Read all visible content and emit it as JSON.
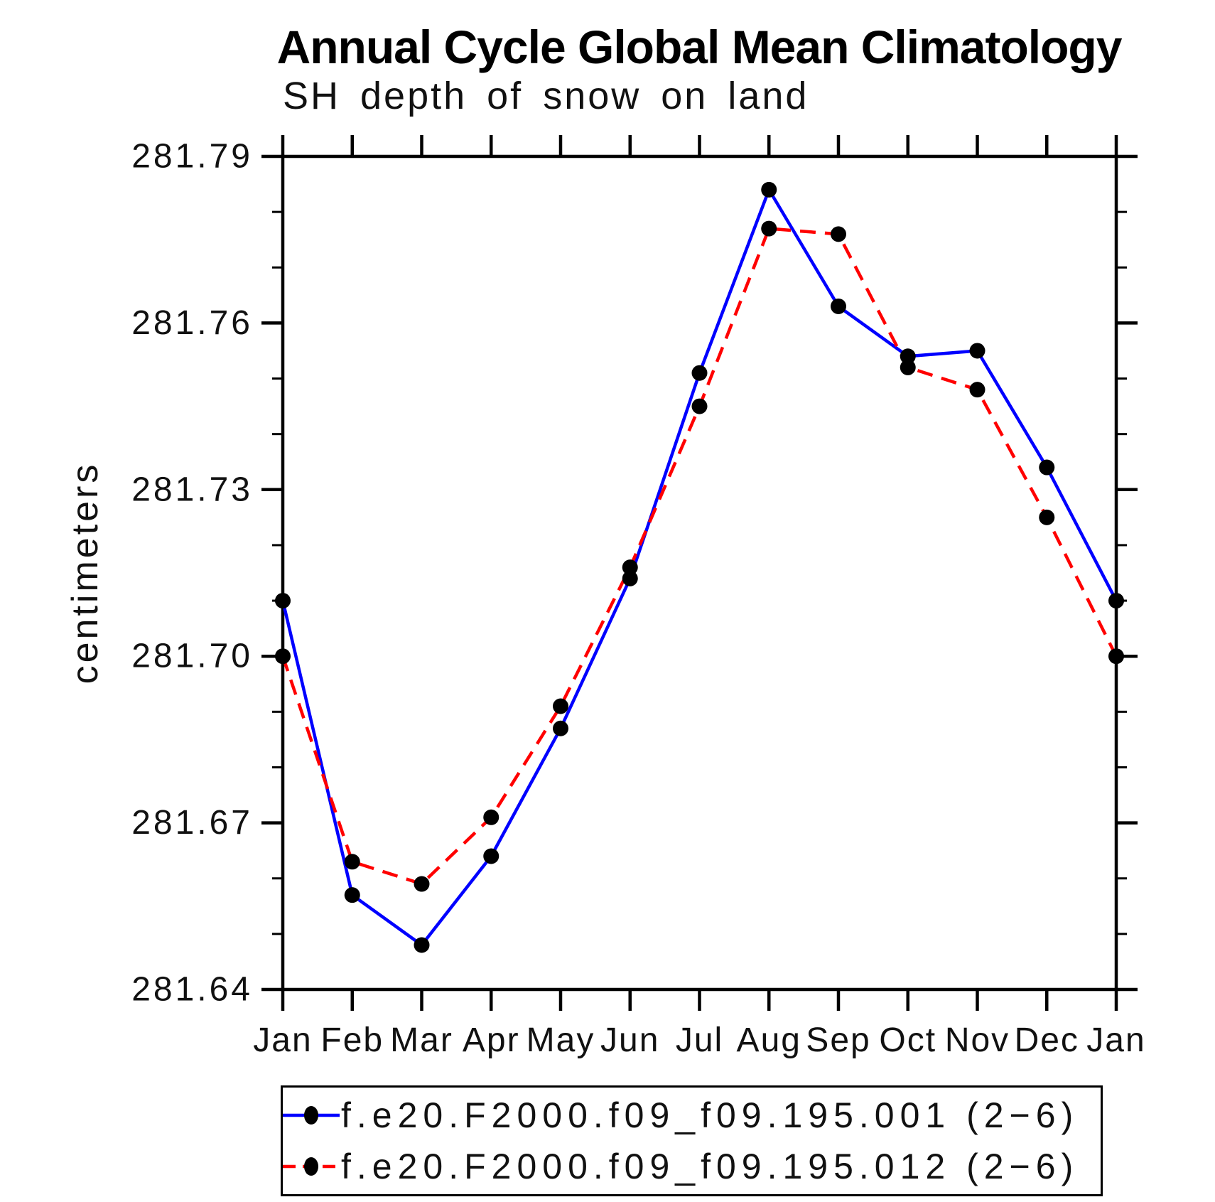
{
  "chart_data": {
    "type": "line",
    "title": "Annual Cycle Global Mean Climatology",
    "subtitle": "SH depth of snow on land",
    "ylabel": "centimeters",
    "xlabel": "",
    "categories": [
      "Jan",
      "Feb",
      "Mar",
      "Apr",
      "May",
      "Jun",
      "Jul",
      "Aug",
      "Sep",
      "Oct",
      "Nov",
      "Dec",
      "Jan"
    ],
    "ylim": [
      281.64,
      281.79
    ],
    "y_major_ticks": [
      {
        "value": 281.79,
        "label": "281.79"
      },
      {
        "value": 281.76,
        "label": "281.76"
      },
      {
        "value": 281.73,
        "label": "281.73"
      },
      {
        "value": 281.7,
        "label": "281.70"
      },
      {
        "value": 281.67,
        "label": "281.67"
      },
      {
        "value": 281.64,
        "label": "281.64"
      }
    ],
    "y_minor_step": 0.01,
    "grid": false,
    "frame_color": "#000000",
    "legend_position": "bottom",
    "series": [
      {
        "name": "f.e20.F2000.f09_f09.195.001 (2−6)",
        "color": "#0000ff",
        "line_style": "solid",
        "marker": "circle",
        "marker_color": "#000000",
        "values": [
          281.71,
          281.657,
          281.648,
          281.664,
          281.687,
          281.714,
          281.751,
          281.784,
          281.763,
          281.754,
          281.755,
          281.734,
          281.71
        ]
      },
      {
        "name": "f.e20.F2000.f09_f09.195.012 (2−6)",
        "color": "#ff0000",
        "line_style": "dashed",
        "marker": "circle",
        "marker_color": "#000000",
        "values": [
          281.7,
          281.663,
          281.659,
          281.671,
          281.691,
          281.716,
          281.745,
          281.777,
          281.776,
          281.752,
          281.748,
          281.725,
          281.7
        ]
      }
    ]
  }
}
